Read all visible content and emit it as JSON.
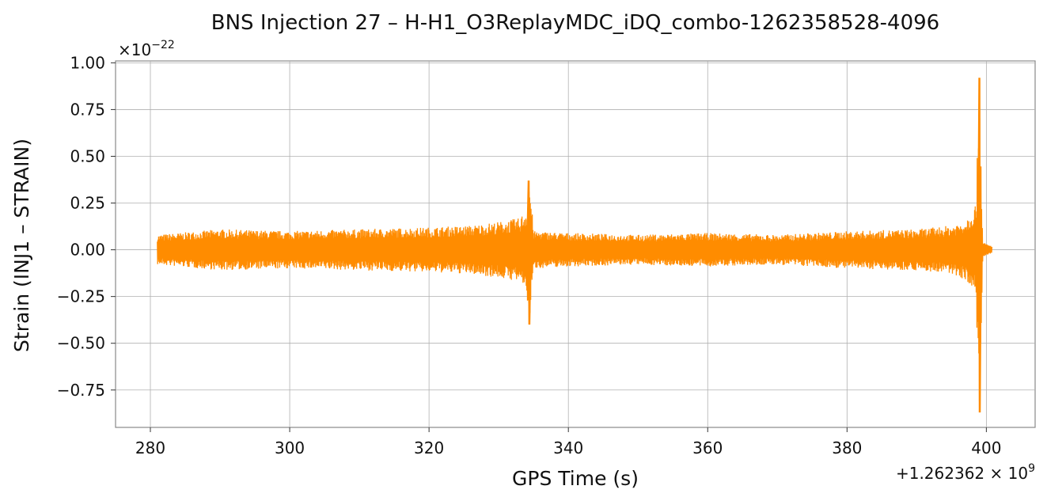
{
  "chart_data": {
    "type": "line",
    "title": "BNS Injection 27 – H-H1_O3ReplayMDC_iDQ_combo-1262358528-4096",
    "xlabel": "GPS Time (s)",
    "ylabel": "Strain (INJ1 – STRAIN)",
    "x_offset_label": "+1.262362",
    "x_offset_exponent": "9",
    "y_scale_label": "×10",
    "y_scale_exponent": "−22",
    "xlim": [
      275,
      407
    ],
    "ylim": [
      -0.95,
      1.01
    ],
    "xticks": [
      280,
      300,
      320,
      340,
      360,
      380,
      400
    ],
    "xtick_labels": [
      "280",
      "300",
      "320",
      "340",
      "360",
      "380",
      "400"
    ],
    "yticks": [
      1.0,
      0.75,
      0.5,
      0.25,
      0.0,
      -0.25,
      -0.5,
      -0.75
    ],
    "ytick_labels": [
      "1.00",
      "0.75",
      "0.50",
      "0.25",
      "0.00",
      "−0.25",
      "−0.50",
      "−0.75"
    ],
    "grid": true,
    "line_color": "#ff8c00",
    "signal": {
      "start": 281.0,
      "end": 400.8,
      "envelope": [
        [
          281,
          0.08
        ],
        [
          290,
          0.11
        ],
        [
          300,
          0.1
        ],
        [
          310,
          0.11
        ],
        [
          320,
          0.12
        ],
        [
          326,
          0.13
        ],
        [
          330,
          0.15
        ],
        [
          333,
          0.17
        ],
        [
          334.0,
          0.22
        ],
        [
          334.3,
          0.37
        ],
        [
          334.4,
          -0.4
        ],
        [
          335,
          0.1
        ],
        [
          340,
          0.09
        ],
        [
          350,
          0.08
        ],
        [
          360,
          0.09
        ],
        [
          370,
          0.08
        ],
        [
          380,
          0.1
        ],
        [
          390,
          0.11
        ],
        [
          395,
          0.13
        ],
        [
          397,
          0.16
        ],
        [
          398.5,
          0.25
        ],
        [
          399.0,
          0.92
        ],
        [
          399.05,
          -0.87
        ],
        [
          399.5,
          0.04
        ],
        [
          400.8,
          0.02
        ]
      ]
    }
  }
}
